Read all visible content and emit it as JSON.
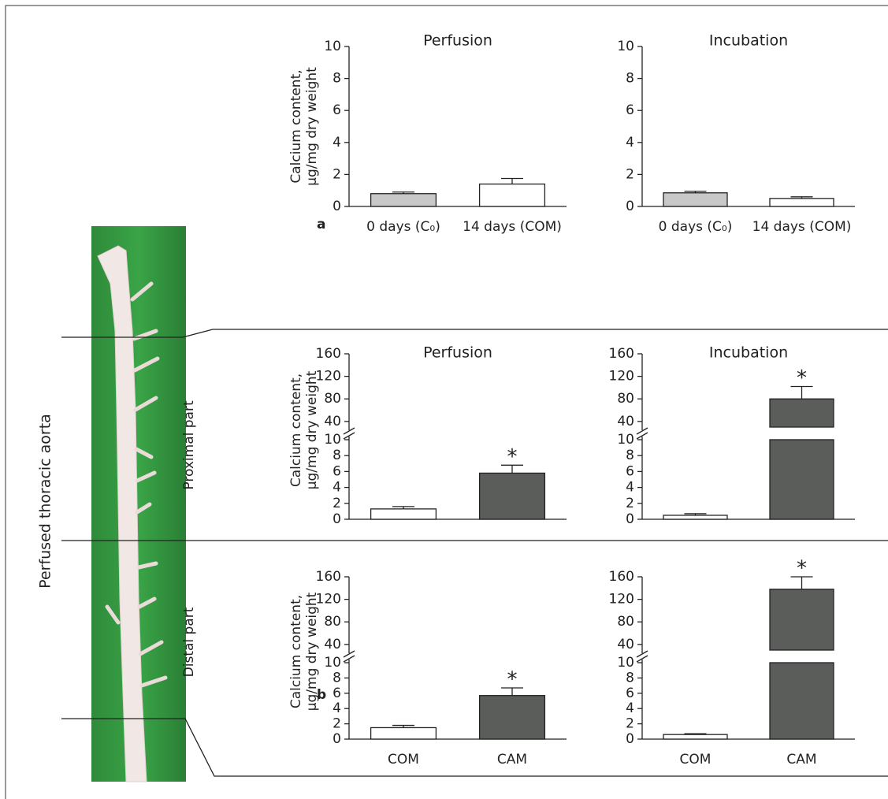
{
  "side_label": "Perfused thoracic aorta",
  "section_labels": [
    "Proximal part",
    "Distal part"
  ],
  "panel_labels": [
    "a",
    "b"
  ],
  "chart_data": [
    {
      "type": "bar",
      "title": "Perfusion",
      "y_label": [
        "Calcium content,",
        "µg/mg dry weight"
      ],
      "categories": [
        "0 days (C₀)",
        "14 days (COM)"
      ],
      "values": [
        0.8,
        1.4
      ],
      "errors": [
        0.1,
        0.35
      ],
      "colors": [
        "#c8c8c8",
        "#ffffff"
      ],
      "ylim": [
        0,
        10
      ],
      "yticks": [
        0,
        2,
        4,
        6,
        8,
        10
      ]
    },
    {
      "type": "bar",
      "title": "Incubation",
      "categories": [
        "0 days (C₀)",
        "14 days (COM)"
      ],
      "values": [
        0.85,
        0.5
      ],
      "errors": [
        0.1,
        0.1
      ],
      "colors": [
        "#c8c8c8",
        "#ffffff"
      ],
      "ylim": [
        0,
        10
      ],
      "yticks": [
        0,
        2,
        4,
        6,
        8,
        10
      ]
    },
    {
      "type": "bar",
      "title": "Perfusion",
      "y_label": [
        "Calcium content,",
        "µg/mg dry weight"
      ],
      "categories": [
        null,
        null
      ],
      "values": [
        1.3,
        5.8
      ],
      "errors": [
        0.3,
        1.0
      ],
      "colors": [
        "#ffffff",
        "#5a5d5a"
      ],
      "annotation": "*",
      "annotated": [
        false,
        true
      ],
      "ylim": [
        0,
        160
      ],
      "ybreak": [
        10,
        30
      ],
      "yticks": [
        0,
        2,
        4,
        6,
        8,
        10,
        40,
        80,
        120,
        160
      ]
    },
    {
      "type": "bar",
      "title": "Incubation",
      "categories": [
        null,
        null
      ],
      "values": [
        0.5,
        80
      ],
      "errors": [
        0.2,
        22
      ],
      "colors": [
        "#ffffff",
        "#5a5d5a"
      ],
      "annotation": "*",
      "annotated": [
        false,
        true
      ],
      "ylim": [
        0,
        160
      ],
      "ybreak": [
        10,
        30
      ],
      "yticks": [
        0,
        2,
        4,
        6,
        8,
        10,
        40,
        80,
        120,
        160
      ]
    },
    {
      "type": "bar",
      "y_label": [
        "Calcium content,",
        "µg/mg dry weight"
      ],
      "categories": [
        "COM",
        "CAM"
      ],
      "values": [
        1.5,
        5.7
      ],
      "errors": [
        0.3,
        1.0
      ],
      "colors": [
        "#ffffff",
        "#5a5d5a"
      ],
      "annotation": "*",
      "annotated": [
        false,
        true
      ],
      "ylim": [
        0,
        160
      ],
      "ybreak": [
        10,
        30
      ],
      "yticks": [
        0,
        2,
        4,
        6,
        8,
        10,
        40,
        80,
        120,
        160
      ]
    },
    {
      "type": "bar",
      "categories": [
        "COM",
        "CAM"
      ],
      "values": [
        0.6,
        138
      ],
      "errors": [
        0.1,
        22
      ],
      "colors": [
        "#ffffff",
        "#5a5d5a"
      ],
      "annotation": "*",
      "annotated": [
        false,
        true
      ],
      "ylim": [
        0,
        160
      ],
      "ybreak": [
        10,
        30
      ],
      "yticks": [
        0,
        2,
        4,
        6,
        8,
        10,
        40,
        80,
        120,
        160
      ]
    }
  ]
}
